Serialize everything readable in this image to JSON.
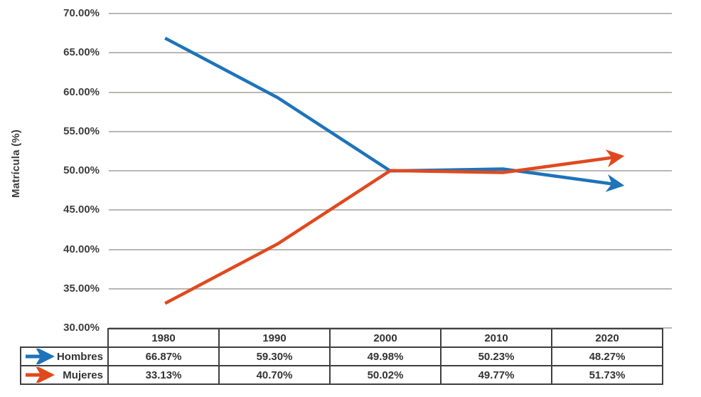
{
  "chart_data": {
    "type": "line",
    "title": "",
    "xlabel": "",
    "ylabel": "Matrícula (%)",
    "ylim": [
      30,
      70
    ],
    "ytick_step": 5,
    "yticks": [
      "70.00%",
      "65.00%",
      "60.00%",
      "55.00%",
      "50.00%",
      "45.00%",
      "40.00%",
      "35.00%",
      "30.00%"
    ],
    "grid": "horizontal-only",
    "gridline_color": "#b9b7b5",
    "line_end_style": "arrow",
    "legend_position": "table-left",
    "x": [
      "1980",
      "1990",
      "2000",
      "2010",
      "2020"
    ],
    "series": [
      {
        "name": "Hombres",
        "color": "#1e73ba",
        "icon": "arrow-right-blue",
        "values": [
          66.87,
          59.3,
          49.98,
          50.23,
          48.27
        ]
      },
      {
        "name": "Mujeres",
        "color": "#e0491e",
        "icon": "arrow-right-orange",
        "values": [
          33.13,
          40.7,
          50.02,
          49.77,
          51.73
        ]
      }
    ]
  },
  "table": {
    "columns": [
      "1980",
      "1990",
      "2000",
      "2010",
      "2020"
    ],
    "rows": [
      {
        "label": "Hombres",
        "values": [
          "66.87%",
          "59.30%",
          "49.98%",
          "50.23%",
          "48.27%"
        ]
      },
      {
        "label": "Mujeres",
        "values": [
          "33.13%",
          "40.70%",
          "50.02%",
          "49.77%",
          "51.73%"
        ]
      }
    ]
  },
  "colors": {
    "hombres": "#1e73ba",
    "mujeres": "#e0491e",
    "grid": "#b9b7b5",
    "text": "#3d3d3d",
    "table_border": "#3f3f3f"
  }
}
